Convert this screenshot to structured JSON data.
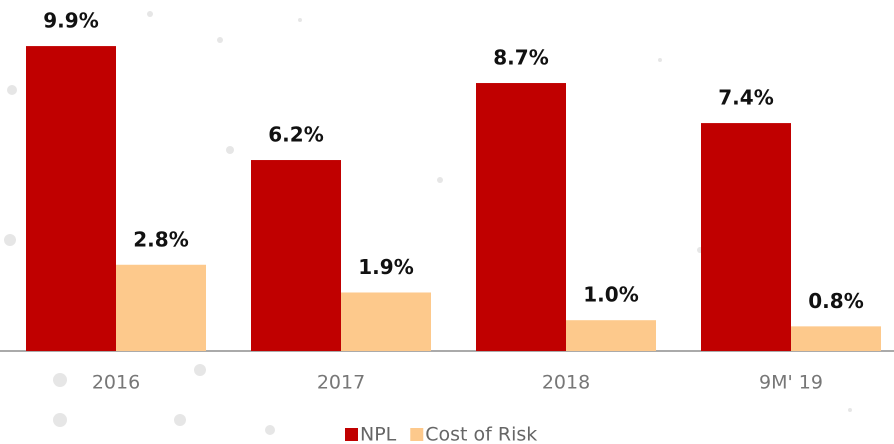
{
  "chart_data": {
    "type": "bar",
    "categories": [
      "2016",
      "2017",
      "2018",
      "9M' 19"
    ],
    "series": [
      {
        "name": "NPL",
        "color": "#c00000",
        "values": [
          9.9,
          6.2,
          8.7,
          7.4
        ],
        "value_labels": [
          "9.9%",
          "6.2%",
          "8.7%",
          "7.4%"
        ]
      },
      {
        "name": "Cost of Risk",
        "color": "#fdc98c",
        "values": [
          2.8,
          1.9,
          1.0,
          0.8
        ],
        "value_labels": [
          "2.8%",
          "1.9%",
          "1.0%",
          "0.8%"
        ]
      }
    ],
    "ylim": [
      0,
      10
    ]
  }
}
